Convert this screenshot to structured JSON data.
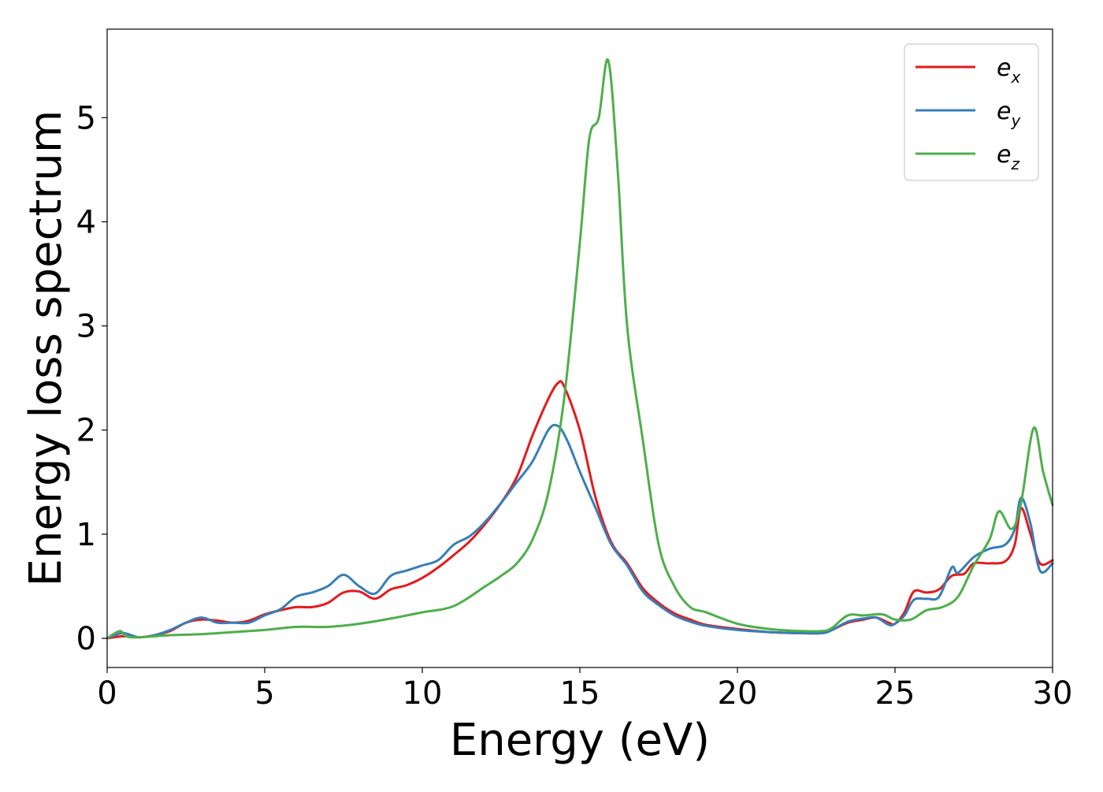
{
  "chart_data": {
    "type": "line",
    "title": "",
    "xlabel": "Energy (eV)",
    "ylabel": "Energy loss spectrum",
    "xlim": [
      0,
      30
    ],
    "ylim": [
      -0.28,
      5.85
    ],
    "xticks": [
      0,
      5,
      10,
      15,
      20,
      25,
      30
    ],
    "yticks": [
      0,
      1,
      2,
      3,
      4,
      5
    ],
    "grid": false,
    "legend_position": "top-right",
    "series": [
      {
        "name": "e_x",
        "label_base": "e",
        "label_sub": "x",
        "color": "#e41a1c",
        "points": [
          [
            0,
            0
          ],
          [
            0.5,
            0.02
          ],
          [
            1,
            0.01
          ],
          [
            1.5,
            0.03
          ],
          [
            2,
            0.07
          ],
          [
            2.5,
            0.15
          ],
          [
            3,
            0.18
          ],
          [
            3.5,
            0.17
          ],
          [
            4,
            0.15
          ],
          [
            4.5,
            0.17
          ],
          [
            5,
            0.23
          ],
          [
            5.5,
            0.27
          ],
          [
            6,
            0.3
          ],
          [
            6.5,
            0.3
          ],
          [
            7,
            0.34
          ],
          [
            7.5,
            0.44
          ],
          [
            8,
            0.45
          ],
          [
            8.5,
            0.38
          ],
          [
            9,
            0.47
          ],
          [
            9.5,
            0.51
          ],
          [
            10,
            0.58
          ],
          [
            10.5,
            0.68
          ],
          [
            11,
            0.8
          ],
          [
            11.5,
            0.93
          ],
          [
            12,
            1.1
          ],
          [
            12.5,
            1.3
          ],
          [
            13,
            1.55
          ],
          [
            13.5,
            1.95
          ],
          [
            14,
            2.3
          ],
          [
            14.3,
            2.45
          ],
          [
            14.5,
            2.42
          ],
          [
            15,
            2.0
          ],
          [
            15.5,
            1.35
          ],
          [
            16,
            0.92
          ],
          [
            16.5,
            0.72
          ],
          [
            17,
            0.48
          ],
          [
            17.5,
            0.34
          ],
          [
            18,
            0.24
          ],
          [
            18.5,
            0.18
          ],
          [
            19,
            0.13
          ],
          [
            20,
            0.09
          ],
          [
            21,
            0.06
          ],
          [
            22,
            0.05
          ],
          [
            22.7,
            0.05
          ],
          [
            23,
            0.08
          ],
          [
            23.5,
            0.15
          ],
          [
            24,
            0.18
          ],
          [
            24.4,
            0.2
          ],
          [
            24.8,
            0.15
          ],
          [
            25,
            0.14
          ],
          [
            25.3,
            0.25
          ],
          [
            25.6,
            0.45
          ],
          [
            26,
            0.44
          ],
          [
            26.4,
            0.47
          ],
          [
            26.8,
            0.6
          ],
          [
            27.2,
            0.62
          ],
          [
            27.5,
            0.72
          ],
          [
            28,
            0.72
          ],
          [
            28.5,
            0.74
          ],
          [
            28.8,
            0.9
          ],
          [
            29,
            1.25
          ],
          [
            29.3,
            1.0
          ],
          [
            29.6,
            0.72
          ],
          [
            30,
            0.75
          ]
        ]
      },
      {
        "name": "e_y",
        "label_base": "e",
        "label_sub": "y",
        "color": "#377eb8",
        "points": [
          [
            0,
            0
          ],
          [
            0.5,
            0.05
          ],
          [
            1,
            0.01
          ],
          [
            1.5,
            0.03
          ],
          [
            2,
            0.08
          ],
          [
            2.5,
            0.15
          ],
          [
            3,
            0.2
          ],
          [
            3.5,
            0.15
          ],
          [
            4,
            0.15
          ],
          [
            4.5,
            0.15
          ],
          [
            5,
            0.22
          ],
          [
            5.5,
            0.28
          ],
          [
            6,
            0.4
          ],
          [
            6.5,
            0.44
          ],
          [
            7,
            0.5
          ],
          [
            7.5,
            0.61
          ],
          [
            8,
            0.5
          ],
          [
            8.5,
            0.43
          ],
          [
            9,
            0.6
          ],
          [
            9.5,
            0.65
          ],
          [
            10,
            0.7
          ],
          [
            10.5,
            0.75
          ],
          [
            11,
            0.9
          ],
          [
            11.5,
            0.98
          ],
          [
            12,
            1.12
          ],
          [
            12.5,
            1.3
          ],
          [
            13,
            1.5
          ],
          [
            13.5,
            1.7
          ],
          [
            14,
            2.0
          ],
          [
            14.3,
            2.04
          ],
          [
            14.6,
            1.9
          ],
          [
            15,
            1.6
          ],
          [
            15.5,
            1.25
          ],
          [
            16,
            0.9
          ],
          [
            16.5,
            0.7
          ],
          [
            17,
            0.45
          ],
          [
            17.5,
            0.32
          ],
          [
            18,
            0.22
          ],
          [
            18.5,
            0.16
          ],
          [
            19,
            0.12
          ],
          [
            20,
            0.08
          ],
          [
            21,
            0.06
          ],
          [
            22,
            0.05
          ],
          [
            22.7,
            0.05
          ],
          [
            23,
            0.08
          ],
          [
            23.5,
            0.16
          ],
          [
            24,
            0.19
          ],
          [
            24.4,
            0.2
          ],
          [
            24.8,
            0.13
          ],
          [
            25,
            0.14
          ],
          [
            25.3,
            0.22
          ],
          [
            25.6,
            0.37
          ],
          [
            26,
            0.38
          ],
          [
            26.4,
            0.4
          ],
          [
            26.8,
            0.68
          ],
          [
            27,
            0.63
          ],
          [
            27.5,
            0.78
          ],
          [
            28,
            0.86
          ],
          [
            28.5,
            0.9
          ],
          [
            28.8,
            1.05
          ],
          [
            29,
            1.35
          ],
          [
            29.3,
            1.1
          ],
          [
            29.6,
            0.65
          ],
          [
            30,
            0.72
          ]
        ]
      },
      {
        "name": "e_z",
        "label_base": "e",
        "label_sub": "z",
        "color": "#4daf4a",
        "points": [
          [
            0,
            0
          ],
          [
            0.4,
            0.07
          ],
          [
            0.6,
            0.02
          ],
          [
            1,
            0.01
          ],
          [
            2,
            0.03
          ],
          [
            3,
            0.04
          ],
          [
            4,
            0.06
          ],
          [
            5,
            0.08
          ],
          [
            6,
            0.11
          ],
          [
            7,
            0.11
          ],
          [
            8,
            0.14
          ],
          [
            9,
            0.19
          ],
          [
            10,
            0.25
          ],
          [
            11,
            0.31
          ],
          [
            12,
            0.5
          ],
          [
            12.5,
            0.6
          ],
          [
            13,
            0.72
          ],
          [
            13.5,
            0.95
          ],
          [
            14,
            1.4
          ],
          [
            14.5,
            2.3
          ],
          [
            15,
            3.8
          ],
          [
            15.3,
            4.8
          ],
          [
            15.6,
            5.0
          ],
          [
            15.9,
            5.55
          ],
          [
            16.2,
            4.5
          ],
          [
            16.5,
            3.0
          ],
          [
            17,
            1.9
          ],
          [
            17.5,
            0.9
          ],
          [
            18,
            0.5
          ],
          [
            18.5,
            0.3
          ],
          [
            19,
            0.25
          ],
          [
            20,
            0.14
          ],
          [
            21,
            0.09
          ],
          [
            22,
            0.07
          ],
          [
            22.7,
            0.07
          ],
          [
            23,
            0.1
          ],
          [
            23.5,
            0.22
          ],
          [
            24,
            0.22
          ],
          [
            24.6,
            0.23
          ],
          [
            25,
            0.18
          ],
          [
            25.5,
            0.18
          ],
          [
            26,
            0.27
          ],
          [
            26.5,
            0.3
          ],
          [
            27,
            0.4
          ],
          [
            27.5,
            0.7
          ],
          [
            28,
            0.95
          ],
          [
            28.3,
            1.22
          ],
          [
            28.7,
            1.05
          ],
          [
            29,
            1.3
          ],
          [
            29.4,
            2.02
          ],
          [
            29.7,
            1.6
          ],
          [
            30,
            1.28
          ]
        ]
      }
    ]
  }
}
